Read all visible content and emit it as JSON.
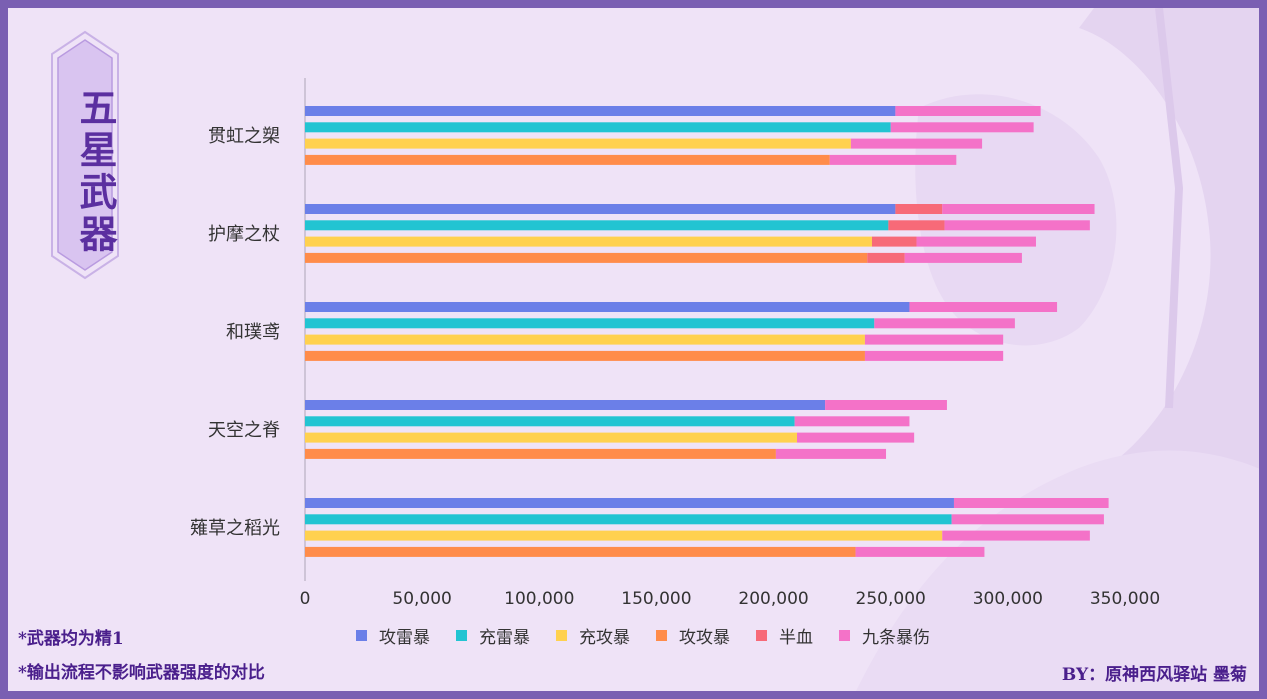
{
  "title": "五星武器",
  "notes": [
    "*武器均为精1",
    "*输出流程不影响武器强度的对比"
  ],
  "credit": "BY：原神西风驿站 墨菊",
  "colors": {
    "攻雷暴": "#6b7fe8",
    "充雷暴": "#22c4d2",
    "充攻暴": "#ffd14f",
    "攻攻暴": "#ff8c4a",
    "半血": "#f76a78",
    "九条暴伤": "#f472c8"
  },
  "chart_data": {
    "type": "bar",
    "orientation": "horizontal",
    "stacked": true,
    "categories": [
      "贯虹之槊",
      "护摩之杖",
      "和璞鸢",
      "天空之脊",
      "薙草之稻光"
    ],
    "sub_series": [
      "攻雷暴",
      "充雷暴",
      "充攻暴",
      "攻攻暴"
    ],
    "stack_segments": [
      "base",
      "半血",
      "九条暴伤"
    ],
    "bars": {
      "贯虹之槊": [
        {
          "name": "攻雷暴",
          "base": 252000,
          "半血": 0,
          "九条暴伤": 62000
        },
        {
          "name": "充雷暴",
          "base": 250000,
          "半血": 0,
          "九条暴伤": 61000
        },
        {
          "name": "充攻暴",
          "base": 233000,
          "半血": 0,
          "九条暴伤": 56000
        },
        {
          "name": "攻攻暴",
          "base": 224000,
          "半血": 0,
          "九条暴伤": 54000
        }
      ],
      "护摩之杖": [
        {
          "name": "攻雷暴",
          "base": 252000,
          "半血": 20000,
          "九条暴伤": 65000
        },
        {
          "name": "充雷暴",
          "base": 249000,
          "半血": 24000,
          "九条暴伤": 62000
        },
        {
          "name": "充攻暴",
          "base": 242000,
          "半血": 19000,
          "九条暴伤": 51000
        },
        {
          "name": "攻攻暴",
          "base": 240000,
          "半血": 16000,
          "九条暴伤": 50000
        }
      ],
      "和璞鸢": [
        {
          "name": "攻雷暴",
          "base": 258000,
          "半血": 0,
          "九条暴伤": 63000
        },
        {
          "name": "充雷暴",
          "base": 243000,
          "半血": 0,
          "九条暴伤": 60000
        },
        {
          "name": "充攻暴",
          "base": 239000,
          "半血": 0,
          "九条暴伤": 59000
        },
        {
          "name": "攻攻暴",
          "base": 239000,
          "半血": 0,
          "九条暴伤": 59000
        }
      ],
      "天空之脊": [
        {
          "name": "攻雷暴",
          "base": 222000,
          "半血": 0,
          "九条暴伤": 52000
        },
        {
          "name": "充雷暴",
          "base": 209000,
          "半血": 0,
          "九条暴伤": 49000
        },
        {
          "name": "充攻暴",
          "base": 210000,
          "半血": 0,
          "九条暴伤": 50000
        },
        {
          "name": "攻攻暴",
          "base": 201000,
          "半血": 0,
          "九条暴伤": 47000
        }
      ],
      "薙草之稻光": [
        {
          "name": "攻雷暴",
          "base": 277000,
          "半血": 0,
          "九条暴伤": 66000
        },
        {
          "name": "充雷暴",
          "base": 276000,
          "半血": 0,
          "九条暴伤": 65000
        },
        {
          "name": "充攻暴",
          "base": 272000,
          "半血": 0,
          "九条暴伤": 63000
        },
        {
          "name": "攻攻暴",
          "base": 235000,
          "半血": 0,
          "九条暴伤": 55000
        }
      ]
    },
    "xlim": [
      0,
      350000
    ],
    "xticks": [
      "0",
      "50,000",
      "100,000",
      "150,000",
      "200,000",
      "250,000",
      "300,000",
      "350,000"
    ],
    "legend": [
      "攻雷暴",
      "充雷暴",
      "充攻暴",
      "攻攻暴",
      "半血",
      "九条暴伤"
    ],
    "legend_position": "bottom",
    "grid": false
  }
}
